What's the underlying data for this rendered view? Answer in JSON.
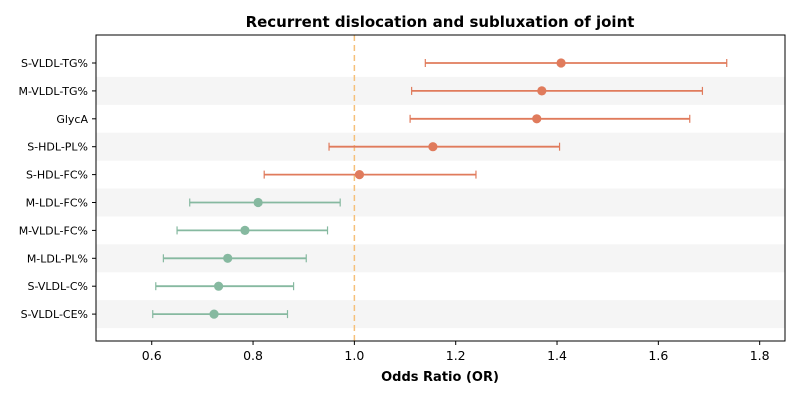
{
  "chart_data": {
    "type": "forest",
    "title": "Recurrent dislocation and subluxation of joint",
    "xlabel": "Odds Ratio (OR)",
    "xlim": [
      0.49,
      1.85
    ],
    "x_ticks": [
      "0.6",
      "0.8",
      "1.0",
      "1.2",
      "1.4",
      "1.6",
      "1.8"
    ],
    "reference_line": 1.0,
    "colors": {
      "positive": "#e07b5c",
      "negative": "#86b9a0",
      "reference": "#f5c07a",
      "band": "#f5f5f5"
    },
    "rows": [
      {
        "label": "S-VLDL-TG%",
        "or": 1.408,
        "lower": 1.14,
        "upper": 1.735
      },
      {
        "label": "M-VLDL-TG%",
        "or": 1.37,
        "lower": 1.113,
        "upper": 1.687
      },
      {
        "label": "GlycA",
        "or": 1.36,
        "lower": 1.11,
        "upper": 1.662
      },
      {
        "label": "S-HDL-PL%",
        "or": 1.155,
        "lower": 0.95,
        "upper": 1.405
      },
      {
        "label": "S-HDL-FC%",
        "or": 1.01,
        "lower": 0.822,
        "upper": 1.24
      },
      {
        "label": "M-LDL-FC%",
        "or": 0.81,
        "lower": 0.675,
        "upper": 0.972
      },
      {
        "label": "M-VLDL-FC%",
        "or": 0.784,
        "lower": 0.65,
        "upper": 0.947
      },
      {
        "label": "M-LDL-PL%",
        "or": 0.75,
        "lower": 0.623,
        "upper": 0.905
      },
      {
        "label": "S-VLDL-C%",
        "or": 0.732,
        "lower": 0.608,
        "upper": 0.88
      },
      {
        "label": "S-VLDL-CE%",
        "or": 0.723,
        "lower": 0.602,
        "upper": 0.868
      }
    ]
  }
}
